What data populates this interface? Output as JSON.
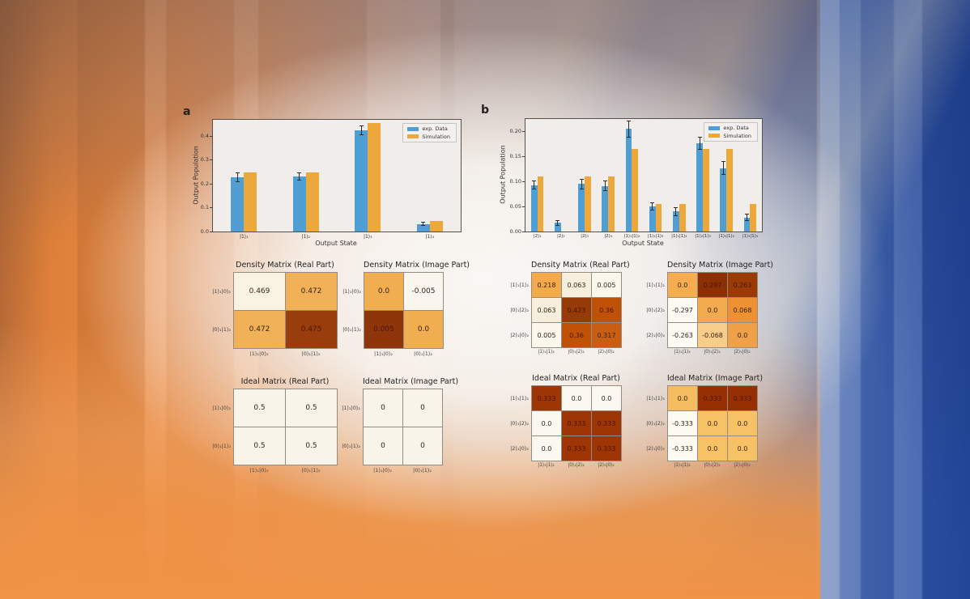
{
  "figure": {
    "panel_a_label": "a",
    "panel_b_label": "b"
  },
  "chart_data": [
    {
      "type": "bar",
      "panel": "a",
      "xlabel": "Output State",
      "ylabel": "Output Population",
      "categories": [
        "|1⟩₁",
        "|1⟩₂",
        "|1⟩₃",
        "|1⟩₄"
      ],
      "series": [
        {
          "name": "exp. Data",
          "color": "#4f9fd4",
          "values": [
            0.228,
            0.232,
            0.425,
            0.032
          ],
          "errors": [
            0.018,
            0.016,
            0.018,
            0.008
          ]
        },
        {
          "name": "Simulation",
          "color": "#eda83c",
          "values": [
            0.248,
            0.248,
            0.455,
            0.043
          ]
        }
      ],
      "ylim": [
        0,
        0.47
      ],
      "yticks": [
        0.0,
        0.1,
        0.2,
        0.3,
        0.4
      ],
      "ytick_labels": [
        "0.0",
        "0.1",
        "0.2",
        "0.3",
        "0.4"
      ],
      "legend_position": "upper right",
      "grid": false
    },
    {
      "type": "bar",
      "panel": "b",
      "xlabel": "Output State",
      "ylabel": "Output Population",
      "categories": [
        "|2⟩₁",
        "|2⟩₂",
        "|2⟩₃",
        "|2⟩₄",
        "|1⟩₁|1⟩₂",
        "|1⟩₁|1⟩₃",
        "|1⟩₁|1⟩₄",
        "|1⟩₂|1⟩₃",
        "|1⟩₂|1⟩₄",
        "|1⟩₃|1⟩₄"
      ],
      "series": [
        {
          "name": "exp. Data",
          "color": "#4f9fd4",
          "values": [
            0.093,
            0.017,
            0.095,
            0.091,
            0.205,
            0.05,
            0.04,
            0.177,
            0.127,
            0.028
          ],
          "errors": [
            0.008,
            0.005,
            0.01,
            0.01,
            0.016,
            0.007,
            0.008,
            0.012,
            0.013,
            0.006
          ]
        },
        {
          "name": "Simulation",
          "color": "#eda83c",
          "values": [
            0.11,
            0.0,
            0.11,
            0.11,
            0.165,
            0.055,
            0.055,
            0.165,
            0.165,
            0.055
          ]
        }
      ],
      "ylim": [
        0,
        0.225
      ],
      "yticks": [
        0.0,
        0.05,
        0.1,
        0.15,
        0.2
      ],
      "ytick_labels": [
        "0.00",
        "0.05",
        "0.10",
        "0.15",
        "0.20"
      ],
      "legend_position": "upper right",
      "grid": false
    }
  ],
  "matrices": {
    "density_real_a": {
      "title": "Density Matrix (Real Part)",
      "row_labels": [
        "|1⟩₁|0⟩₂",
        "|0⟩₁|1⟩₂"
      ],
      "col_labels": [
        "|1⟩₁|0⟩₂",
        "|0⟩₁|1⟩₂"
      ],
      "cells": [
        [
          {
            "v": "0.469",
            "bg": "#faf3e4"
          },
          {
            "v": "0.472",
            "bg": "#f1b156"
          }
        ],
        [
          {
            "v": "0.472",
            "bg": "#f1b156"
          },
          {
            "v": "0.475",
            "bg": "#9a3d0c"
          }
        ]
      ]
    },
    "density_imag_a": {
      "title": "Density Matrix (Image Part)",
      "row_labels": [
        "|1⟩₁|0⟩₂",
        "|0⟩₁|1⟩₂"
      ],
      "col_labels": [
        "|1⟩₁|0⟩₂",
        "|0⟩₁|1⟩₂"
      ],
      "cells": [
        [
          {
            "v": "0.0",
            "bg": "#f1ae50"
          },
          {
            "v": "-0.005",
            "bg": "#faf6ee"
          }
        ],
        [
          {
            "v": "0.005",
            "bg": "#8e3509"
          },
          {
            "v": "0.0",
            "bg": "#f1ae50"
          }
        ]
      ]
    },
    "ideal_real_a": {
      "title": "Ideal Matrix (Real Part)",
      "row_labels": [
        "|1⟩₁|0⟩₂",
        "|0⟩₁|1⟩₂"
      ],
      "col_labels": [
        "|1⟩₁|0⟩₂",
        "|0⟩₁|1⟩₂"
      ],
      "cells": [
        [
          {
            "v": "0.5",
            "bg": "#f8f4ea"
          },
          {
            "v": "0.5",
            "bg": "#f8f4ea"
          }
        ],
        [
          {
            "v": "0.5",
            "bg": "#f8f4ea"
          },
          {
            "v": "0.5",
            "bg": "#f8f4ea"
          }
        ]
      ]
    },
    "ideal_imag_a": {
      "title": "Ideal Matrix (Image Part)",
      "row_labels": [
        "|1⟩₁|0⟩₂",
        "|0⟩₁|1⟩₂"
      ],
      "col_labels": [
        "|1⟩₁|0⟩₂",
        "|0⟩₁|1⟩₂"
      ],
      "cells": [
        [
          {
            "v": "0",
            "bg": "#f8f4ea"
          },
          {
            "v": "0",
            "bg": "#f8f4ea"
          }
        ],
        [
          {
            "v": "0",
            "bg": "#f8f4ea"
          },
          {
            "v": "0",
            "bg": "#f8f4ea"
          }
        ]
      ]
    },
    "density_real_b": {
      "title": "Density Matrix (Real Part)",
      "row_labels": [
        "|1⟩₁|1⟩₂",
        "|0⟩₁|2⟩₂",
        "|2⟩₁|0⟩₂"
      ],
      "col_labels": [
        "|1⟩₁|1⟩₂",
        "|0⟩₁|2⟩₂",
        "|2⟩₁|0⟩₂"
      ],
      "cells": [
        [
          {
            "v": "0.218",
            "bg": "#f4a94b"
          },
          {
            "v": "0.063",
            "bg": "#f7eedb"
          },
          {
            "v": "0.005",
            "bg": "#fbf7ec"
          }
        ],
        [
          {
            "v": "0.063",
            "bg": "#f7eedb"
          },
          {
            "v": "0.423",
            "bg": "#953a08"
          },
          {
            "v": "0.36",
            "bg": "#c05207"
          }
        ],
        [
          {
            "v": "0.005",
            "bg": "#fbf7ec"
          },
          {
            "v": "0.36",
            "bg": "#c05207"
          },
          {
            "v": "0.317",
            "bg": "#c95d11"
          }
        ]
      ]
    },
    "density_imag_b": {
      "title": "Density Matrix (Image Part)",
      "row_labels": [
        "|1⟩₁|1⟩₂",
        "|0⟩₁|2⟩₂",
        "|2⟩₁|0⟩₂"
      ],
      "col_labels": [
        "|1⟩₁|1⟩₂",
        "|0⟩₁|2⟩₂",
        "|2⟩₁|0⟩₂"
      ],
      "cells": [
        [
          {
            "v": "0.0",
            "bg": "#f5ad50"
          },
          {
            "v": "0.297",
            "bg": "#8c3004"
          },
          {
            "v": "0.263",
            "bg": "#9c3a06"
          }
        ],
        [
          {
            "v": "-0.297",
            "bg": "#fdfbf3"
          },
          {
            "v": "0.0",
            "bg": "#f3a94e"
          },
          {
            "v": "0.068",
            "bg": "#ed9133"
          }
        ],
        [
          {
            "v": "-0.263",
            "bg": "#fdfbf3"
          },
          {
            "v": "-0.068",
            "bg": "#f8cd8a"
          },
          {
            "v": "0.0",
            "bg": "#efa148"
          }
        ]
      ]
    },
    "ideal_real_b": {
      "title": "Ideal Matrix (Real Part)",
      "row_labels": [
        "|1⟩₁|1⟩₂",
        "|0⟩₁|2⟩₂",
        "|2⟩₁|0⟩₂"
      ],
      "col_labels": [
        "|1⟩₁|1⟩₂",
        "|0⟩₁|2⟩₂",
        "|2⟩₁|0⟩₂"
      ],
      "cells": [
        [
          {
            "v": "0.333",
            "bg": "#9e3504"
          },
          {
            "v": "0.0",
            "bg": "#fbf8f0"
          },
          {
            "v": "0.0",
            "bg": "#fbf8f0"
          }
        ],
        [
          {
            "v": "0.0",
            "bg": "#fbf8f0"
          },
          {
            "v": "0.333",
            "bg": "#9e3504"
          },
          {
            "v": "0.333",
            "bg": "#9e3504"
          }
        ],
        [
          {
            "v": "0.0",
            "bg": "#fbf8f0"
          },
          {
            "v": "0.333",
            "bg": "#9e3504"
          },
          {
            "v": "0.333",
            "bg": "#9e3504"
          }
        ]
      ]
    },
    "ideal_imag_b": {
      "title": "Ideal Matrix (Image Part)",
      "row_labels": [
        "|1⟩₁|1⟩₂",
        "|0⟩₁|2⟩₂",
        "|2⟩₁|0⟩₂"
      ],
      "col_labels": [
        "|1⟩₁|1⟩₂",
        "|0⟩₁|2⟩₂",
        "|2⟩₁|0⟩₂"
      ],
      "cells": [
        [
          {
            "v": "0.0",
            "bg": "#f6bd60"
          },
          {
            "v": "0.333",
            "bg": "#962f02"
          },
          {
            "v": "0.333",
            "bg": "#962f02"
          }
        ],
        [
          {
            "v": "-0.333",
            "bg": "#fdfaf2"
          },
          {
            "v": "0.0",
            "bg": "#f7c266"
          },
          {
            "v": "0.0",
            "bg": "#f7c266"
          }
        ],
        [
          {
            "v": "-0.333",
            "bg": "#fdfaf2"
          },
          {
            "v": "0.0",
            "bg": "#f7c266"
          },
          {
            "v": "0.0",
            "bg": "#f7c266"
          }
        ]
      ]
    }
  }
}
